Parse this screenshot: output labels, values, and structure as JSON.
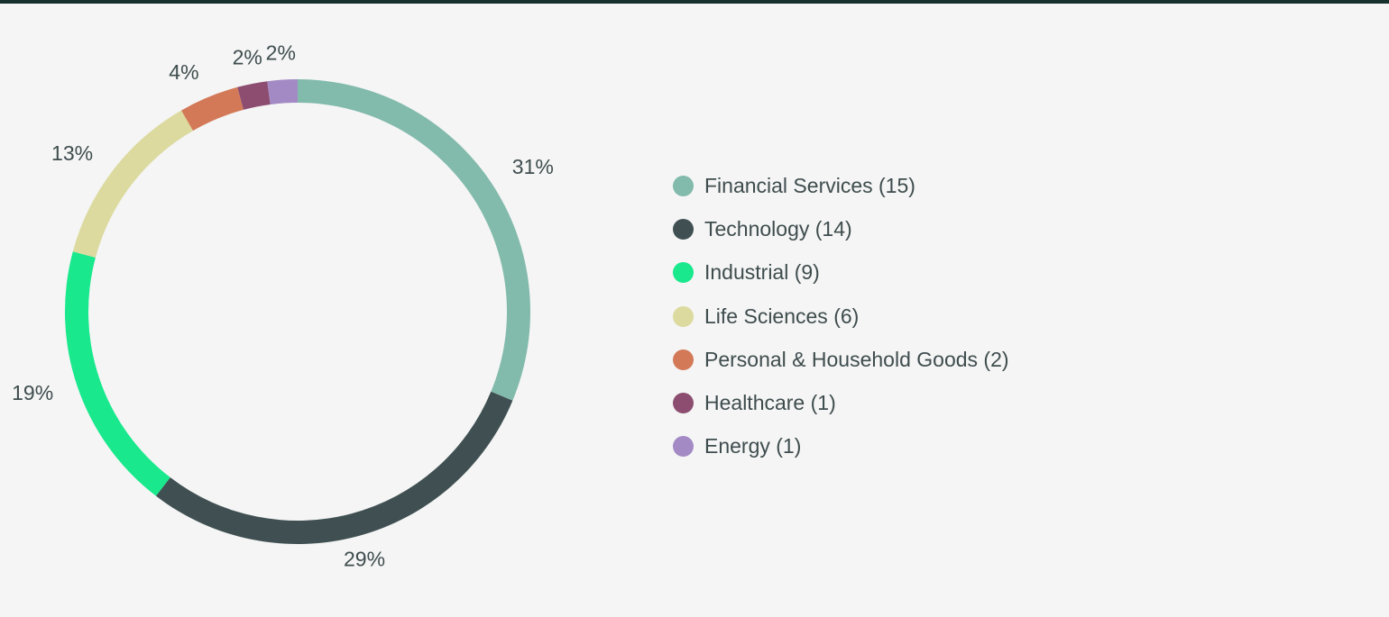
{
  "chart_data": {
    "type": "pie",
    "variant": "donut",
    "title": "",
    "legend_position": "right",
    "series": [
      {
        "name": "Financial Services",
        "count": 15,
        "percent": 31,
        "label": "31%",
        "legend": "Financial Services (15)",
        "color": "#82baac"
      },
      {
        "name": "Technology",
        "count": 14,
        "percent": 29,
        "label": "29%",
        "legend": "Technology (14)",
        "color": "#405052"
      },
      {
        "name": "Industrial",
        "count": 9,
        "percent": 19,
        "label": "19%",
        "legend": "Industrial (9)",
        "color": "#19e88d"
      },
      {
        "name": "Life Sciences",
        "count": 6,
        "percent": 13,
        "label": "13%",
        "legend": "Life Sciences (6)",
        "color": "#dcda9e"
      },
      {
        "name": "Personal & Household Goods",
        "count": 2,
        "percent": 4,
        "label": "4%",
        "legend": "Personal & Household Goods (2)",
        "color": "#d37958"
      },
      {
        "name": "Healthcare",
        "count": 1,
        "percent": 2,
        "label": "2%",
        "legend": "Healthcare (1)",
        "color": "#8c4d71"
      },
      {
        "name": "Energy",
        "count": 1,
        "percent": 2,
        "label": "2%",
        "legend": "Energy (1)",
        "color": "#a48ac4"
      }
    ]
  },
  "colors": {
    "background": "#f4f5f4",
    "top_bar": "#17312f",
    "text": "#3f4c4e"
  }
}
